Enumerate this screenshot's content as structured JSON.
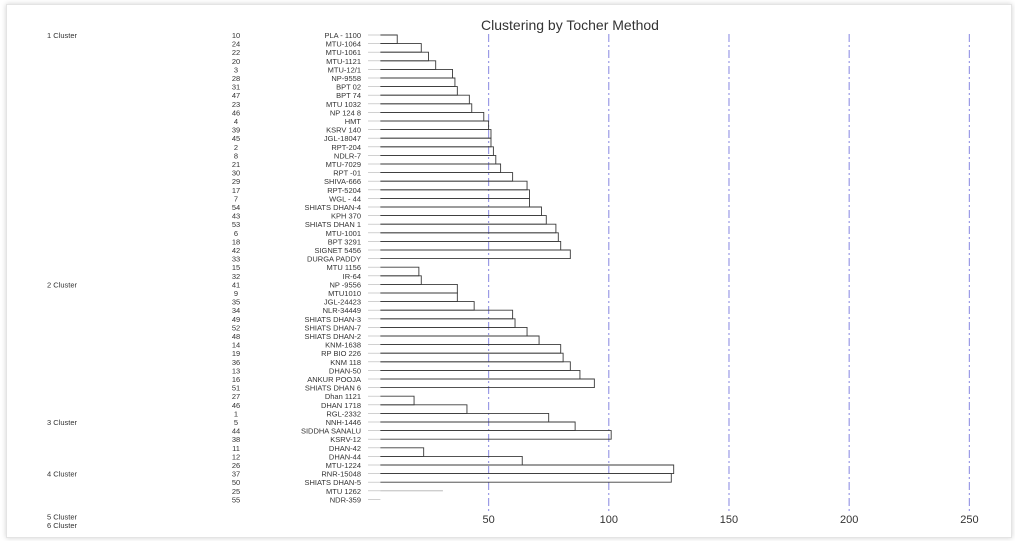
{
  "chart_data": {
    "type": "dendrogram",
    "title": "Clustering by Tocher Method",
    "x_ticks": [
      50,
      100,
      150,
      200,
      250
    ],
    "x_range": [
      4,
      256
    ],
    "grid": "vertical dash-dot lines at each tick",
    "clusters": [
      {
        "label": "1 Cluster",
        "start": 0
      },
      {
        "label": "2 Cluster",
        "start": 29
      },
      {
        "label": "3 Cluster",
        "start": 45
      },
      {
        "label": "4 Cluster",
        "start": 51
      },
      {
        "label": "5 Cluster",
        "start": 56
      },
      {
        "label": "6 Cluster",
        "start": 57
      }
    ],
    "rows": [
      {
        "num": "10",
        "name": "PLA - 1100"
      },
      {
        "num": "24",
        "name": "MTU-1064"
      },
      {
        "num": "22",
        "name": "MTU-1061"
      },
      {
        "num": "20",
        "name": "MTU-1121"
      },
      {
        "num": "3",
        "name": "MTU-12/1"
      },
      {
        "num": "28",
        "name": "NP-9558"
      },
      {
        "num": "31",
        "name": "BPT 02"
      },
      {
        "num": "47",
        "name": "BPT 74"
      },
      {
        "num": "23",
        "name": "MTU 1032"
      },
      {
        "num": "46",
        "name": "NP 124 8"
      },
      {
        "num": "4",
        "name": "HMT"
      },
      {
        "num": "39",
        "name": "KSRV 140"
      },
      {
        "num": "45",
        "name": "JGL-18047"
      },
      {
        "num": "2",
        "name": "RPT-204"
      },
      {
        "num": "8",
        "name": "NDLR-7"
      },
      {
        "num": "21",
        "name": "MTU-7029"
      },
      {
        "num": "30",
        "name": "RPT -01"
      },
      {
        "num": "29",
        "name": "SHIVA-666"
      },
      {
        "num": "17",
        "name": "RPT-5204"
      },
      {
        "num": "7",
        "name": "WGL - 44"
      },
      {
        "num": "54",
        "name": "SHIATS DHAN-4"
      },
      {
        "num": "43",
        "name": "KPH 370"
      },
      {
        "num": "53",
        "name": "SHIATS DHAN 1"
      },
      {
        "num": "6",
        "name": "MTU-1001"
      },
      {
        "num": "18",
        "name": "BPT 3291"
      },
      {
        "num": "42",
        "name": "SIGNET 5456"
      },
      {
        "num": "33",
        "name": "DURGA PADDY"
      },
      {
        "num": "15",
        "name": "MTU 1156"
      },
      {
        "num": "32",
        "name": "IR-64"
      },
      {
        "num": "41",
        "name": "NP -9556"
      },
      {
        "num": "9",
        "name": "MTU1010"
      },
      {
        "num": "35",
        "name": "JGL-24423"
      },
      {
        "num": "34",
        "name": "NLR-34449"
      },
      {
        "num": "49",
        "name": "SHIATS DHAN-3"
      },
      {
        "num": "52",
        "name": "SHIATS DHAN-7"
      },
      {
        "num": "48",
        "name": "SHIATS DHAN-2"
      },
      {
        "num": "14",
        "name": "KNM-1638"
      },
      {
        "num": "19",
        "name": "RP BIO 226"
      },
      {
        "num": "36",
        "name": "KNM 118"
      },
      {
        "num": "13",
        "name": "DHAN-50"
      },
      {
        "num": "16",
        "name": "ANKUR POOJA"
      },
      {
        "num": "51",
        "name": "SHIATS DHAN 6"
      },
      {
        "num": "27",
        "name": "Dhan 1121"
      },
      {
        "num": "46",
        "name": "DHAN 1718"
      },
      {
        "num": "1",
        "name": "RGL-2332"
      },
      {
        "num": "5",
        "name": "NNH-1446"
      },
      {
        "num": "44",
        "name": "SIDDHA SANALU"
      },
      {
        "num": "38",
        "name": "KSRV-12"
      },
      {
        "num": "11",
        "name": "DHAN-42"
      },
      {
        "num": "12",
        "name": "DHAN-44"
      },
      {
        "num": "26",
        "name": "MTU-1224"
      },
      {
        "num": "37",
        "name": "RNR-15048"
      },
      {
        "num": "50",
        "name": "SHIATS DHAN-5"
      },
      {
        "num": "25",
        "name": "MTU 1262"
      },
      {
        "num": "55",
        "name": "NDR-359"
      }
    ],
    "merges": [
      {
        "top": 0,
        "bottom": 1,
        "height": 12
      },
      {
        "top": 1,
        "bottom": 2,
        "height": 22
      },
      {
        "top": 2,
        "bottom": 3,
        "height": 25
      },
      {
        "top": 3,
        "bottom": 4,
        "height": 28
      },
      {
        "top": 4,
        "bottom": 5,
        "height": 35
      },
      {
        "top": 5,
        "bottom": 6,
        "height": 36
      },
      {
        "top": 6,
        "bottom": 7,
        "height": 37
      },
      {
        "top": 7,
        "bottom": 8,
        "height": 42
      },
      {
        "top": 8,
        "bottom": 9,
        "height": 43
      },
      {
        "top": 9,
        "bottom": 10,
        "height": 48
      },
      {
        "top": 10,
        "bottom": 11,
        "height": 50
      },
      {
        "top": 11,
        "bottom": 12,
        "height": 51
      },
      {
        "top": 12,
        "bottom": 13,
        "height": 51
      },
      {
        "top": 13,
        "bottom": 14,
        "height": 52
      },
      {
        "top": 14,
        "bottom": 15,
        "height": 53
      },
      {
        "top": 15,
        "bottom": 16,
        "height": 55
      },
      {
        "top": 16,
        "bottom": 17,
        "height": 60
      },
      {
        "top": 17,
        "bottom": 18,
        "height": 66
      },
      {
        "top": 18,
        "bottom": 19,
        "height": 67
      },
      {
        "top": 19,
        "bottom": 20,
        "height": 67
      },
      {
        "top": 20,
        "bottom": 21,
        "height": 72
      },
      {
        "top": 21,
        "bottom": 22,
        "height": 74
      },
      {
        "top": 22,
        "bottom": 23,
        "height": 78
      },
      {
        "top": 23,
        "bottom": 24,
        "height": 79
      },
      {
        "top": 24,
        "bottom": 25,
        "height": 80
      },
      {
        "top": 25,
        "bottom": 26,
        "height": 84
      },
      {
        "top": 27,
        "bottom": 28,
        "height": 21
      },
      {
        "top": 28,
        "bottom": 29,
        "height": 22
      },
      {
        "top": 29,
        "bottom": 30,
        "height": 37
      },
      {
        "top": 30,
        "bottom": 31,
        "height": 37
      },
      {
        "top": 31,
        "bottom": 32,
        "height": 44
      },
      {
        "top": 32,
        "bottom": 33,
        "height": 60
      },
      {
        "top": 33,
        "bottom": 34,
        "height": 61
      },
      {
        "top": 34,
        "bottom": 35,
        "height": 66
      },
      {
        "top": 35,
        "bottom": 36,
        "height": 71
      },
      {
        "top": 36,
        "bottom": 37,
        "height": 80
      },
      {
        "top": 37,
        "bottom": 38,
        "height": 81
      },
      {
        "top": 38,
        "bottom": 39,
        "height": 84
      },
      {
        "top": 39,
        "bottom": 40,
        "height": 88
      },
      {
        "top": 40,
        "bottom": 41,
        "height": 94
      },
      {
        "top": 42,
        "bottom": 43,
        "height": 19
      },
      {
        "top": 43,
        "bottom": 44,
        "height": 41
      },
      {
        "top": 44,
        "bottom": 45,
        "height": 75
      },
      {
        "top": 45,
        "bottom": 46,
        "height": 86
      },
      {
        "top": 46,
        "bottom": 47,
        "height": 101
      },
      {
        "top": 48,
        "bottom": 49,
        "height": 23
      },
      {
        "top": 49,
        "bottom": 50,
        "height": 64
      },
      {
        "top": 50,
        "bottom": 51,
        "height": 127
      },
      {
        "top": 51,
        "bottom": 52,
        "height": 126
      },
      {
        "top": 53,
        "bottom": 53,
        "height": 31
      }
    ]
  }
}
